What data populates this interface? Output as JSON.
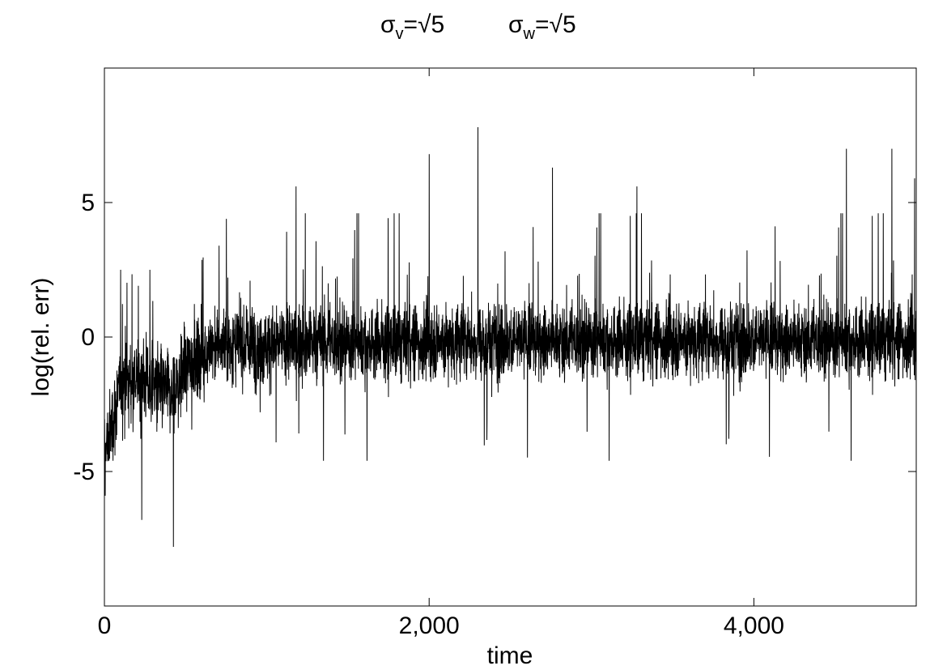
{
  "chart_data": {
    "type": "line",
    "title": {
      "parts": [
        {
          "sym": "σ",
          "sub": "v",
          "eq": "=√5"
        },
        {
          "sym": "σ",
          "sub": "w",
          "eq": "=√5"
        }
      ]
    },
    "xlabel": "time",
    "ylabel": "log(rel. err)",
    "xlim": [
      0,
      5000
    ],
    "ylim": [
      -10,
      10
    ],
    "x_ticks": [
      {
        "value": 0,
        "label": "0"
      },
      {
        "value": 2000,
        "label": "2,000"
      },
      {
        "value": 4000,
        "label": "4,000"
      }
    ],
    "y_ticks": [
      {
        "value": 5,
        "label": "5"
      },
      {
        "value": 0,
        "label": "0"
      },
      {
        "value": -5,
        "label": "-5"
      }
    ],
    "grid": false,
    "series": [
      {
        "color": "#000000",
        "n_points": 5000,
        "description_points": [
          {
            "x": 0,
            "y": -4.5
          },
          {
            "x": 100,
            "y": -1.8
          },
          {
            "x": 230,
            "y": -1.5
          },
          {
            "x": 420,
            "y": -2.2
          },
          {
            "x": 520,
            "y": -0.9
          },
          {
            "x": 700,
            "y": -0.3
          },
          {
            "x": 1500,
            "y": -0.2
          },
          {
            "x": 3000,
            "y": -0.1
          },
          {
            "x": 5000,
            "y": -0.1
          }
        ],
        "peaks": [
          {
            "x": 5,
            "y": -5.9
          },
          {
            "x": 230,
            "y": -6.8
          },
          {
            "x": 425,
            "y": -7.8
          },
          {
            "x": 1180,
            "y": 5.6
          },
          {
            "x": 2000,
            "y": 6.8
          },
          {
            "x": 2300,
            "y": 7.8
          },
          {
            "x": 2760,
            "y": 6.3
          },
          {
            "x": 3280,
            "y": 5.6
          },
          {
            "x": 4570,
            "y": 7.0
          },
          {
            "x": 4850,
            "y": 7.0
          },
          {
            "x": 4990,
            "y": 5.9
          }
        ]
      }
    ]
  }
}
